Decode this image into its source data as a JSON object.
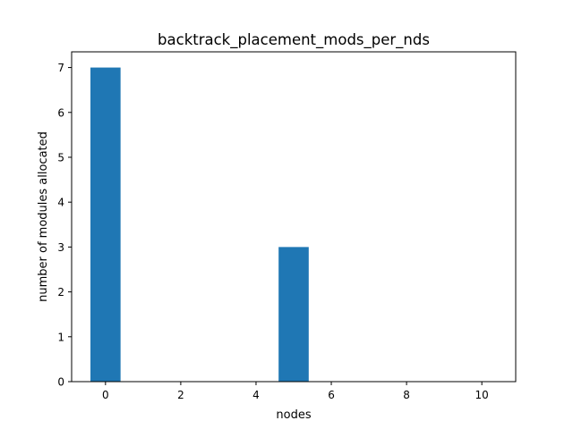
{
  "chart_data": {
    "type": "bar",
    "title": "backtrack_placement_mods_per_nds",
    "xlabel": "nodes",
    "ylabel": "number of modules allocated",
    "xlim": [
      -0.9,
      10.9
    ],
    "ylim": [
      0,
      7.35
    ],
    "x_ticks": [
      "0",
      "2",
      "4",
      "6",
      "8",
      "10"
    ],
    "y_ticks": [
      "0",
      "1",
      "2",
      "3",
      "4",
      "5",
      "6",
      "7"
    ],
    "bar_width": 0.8,
    "bar_color": "#1f77b4",
    "grid": false,
    "x": [
      0,
      1,
      2,
      3,
      4,
      5,
      6,
      7,
      8,
      9,
      10
    ],
    "values": [
      7,
      0,
      0,
      0,
      0,
      3,
      0,
      0,
      0,
      0,
      0
    ]
  }
}
